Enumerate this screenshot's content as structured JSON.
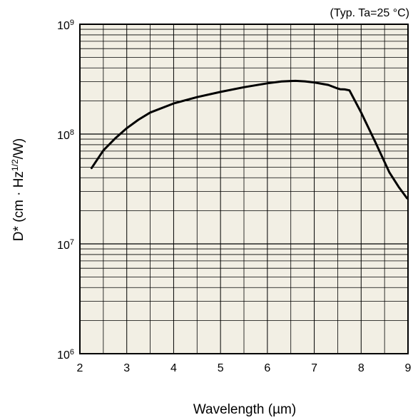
{
  "chart_data": {
    "type": "line",
    "annotation": "(Typ. Ta=25 °C)",
    "xlabel": "Wavelength (µm)",
    "ylabel": {
      "prefix": "D* (cm · Hz",
      "sup": "1/2",
      "suffix": "/W)"
    },
    "xlim": [
      2,
      9
    ],
    "ylim": [
      1000000,
      1000000000
    ],
    "yscale": "log",
    "grid": true,
    "x_ticks": [
      "2",
      "3",
      "4",
      "5",
      "6",
      "7",
      "8",
      "9"
    ],
    "y_ticks": [
      {
        "base": "10",
        "exp": "6",
        "value": 1000000
      },
      {
        "base": "10",
        "exp": "7",
        "value": 10000000
      },
      {
        "base": "10",
        "exp": "8",
        "value": 100000000
      },
      {
        "base": "10",
        "exp": "9",
        "value": 1000000000
      }
    ],
    "colors": {
      "plot_background": "#f2efe4",
      "line": "#000000",
      "grid": "#000000"
    },
    "series": [
      {
        "x": [
          2.25,
          2.5,
          2.75,
          3.0,
          3.25,
          3.5,
          4.0,
          4.5,
          5.0,
          5.5,
          6.0,
          6.3,
          6.5,
          6.6,
          6.8,
          7.0,
          7.3,
          7.5,
          7.55,
          7.65,
          7.75,
          8.0,
          8.3,
          8.6,
          8.8,
          8.98
        ],
        "y": [
          49000000,
          71000000,
          91000000,
          113000000,
          135000000,
          157000000,
          190000000,
          217000000,
          242000000,
          267000000,
          290000000,
          301000000,
          304000000,
          305000000,
          302000000,
          295000000,
          280000000,
          260000000,
          256000000,
          255000000,
          250000000,
          157000000,
          85000000,
          45000000,
          33000000,
          26000000
        ]
      }
    ]
  }
}
